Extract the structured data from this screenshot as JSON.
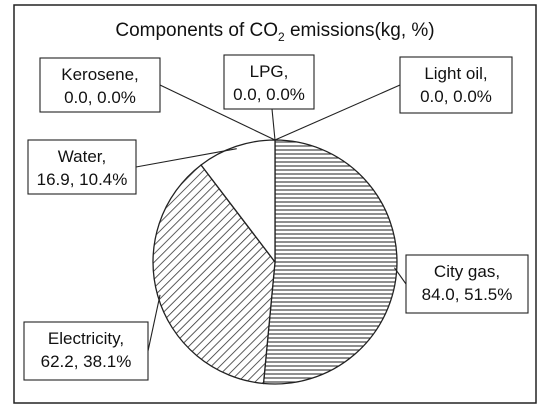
{
  "chart_data": {
    "type": "pie",
    "title": {
      "before": "Components of CO",
      "subscript": "2",
      "after": " emissions(kg, %)"
    },
    "slices": [
      {
        "label": "City gas",
        "value": 84.0,
        "percent": 51.5,
        "value_text": "84.0, 51.5%",
        "fill": "horizontal-hatch"
      },
      {
        "label": "Electricity",
        "value": 62.2,
        "percent": 38.1,
        "value_text": "62.2, 38.1%",
        "fill": "diagonal-hatch"
      },
      {
        "label": "Water",
        "value": 16.9,
        "percent": 10.4,
        "value_text": "16.9, 10.4%",
        "fill": "white"
      },
      {
        "label": "Kerosene",
        "value": 0.0,
        "percent": 0.0,
        "value_text": "0.0, 0.0%",
        "fill": "white"
      },
      {
        "label": "LPG",
        "value": 0.0,
        "percent": 0.0,
        "value_text": "0.0, 0.0%",
        "fill": "white"
      },
      {
        "label": "Light oil",
        "value": 0.0,
        "percent": 0.0,
        "value_text": "0.0, 0.0%",
        "fill": "white"
      }
    ],
    "start": "12 o'clock",
    "direction": "clockwise",
    "colors": {
      "stroke": "#222222",
      "hatch": "#333333",
      "background": "#ffffff"
    }
  }
}
